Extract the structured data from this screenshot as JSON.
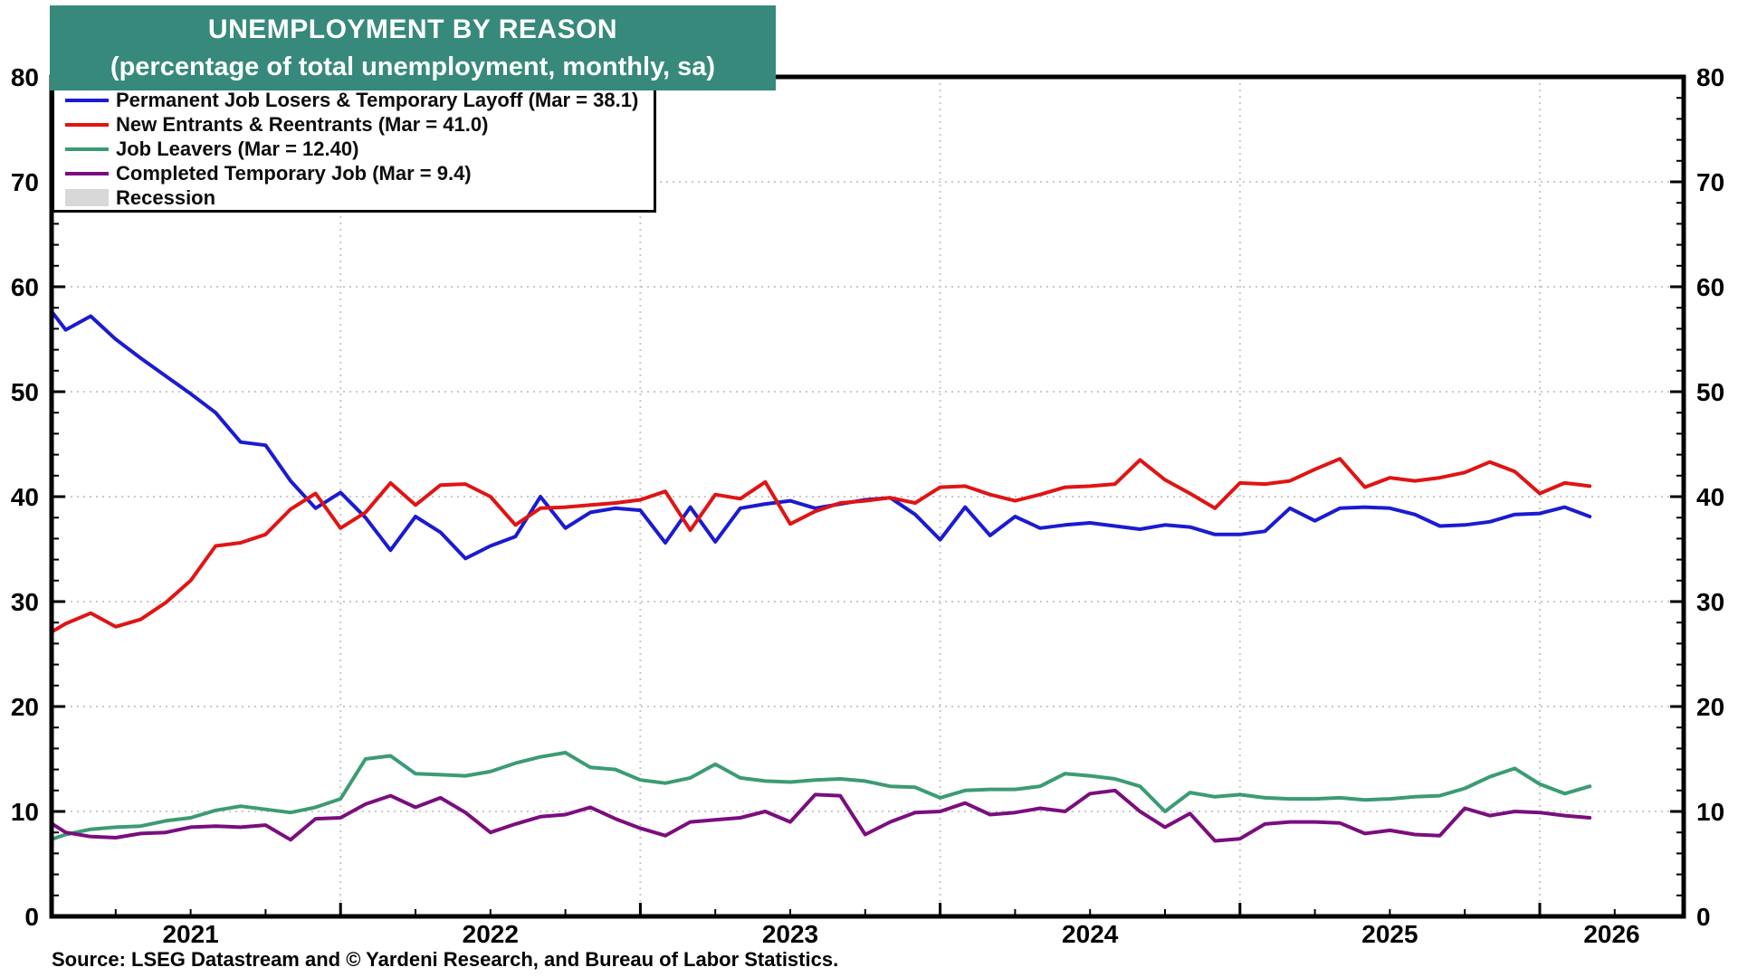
{
  "title": {
    "line1": "UNEMPLOYMENT BY REASON",
    "line2": "(percentage of total unemployment, monthly, sa)",
    "bg_color": "#36897B",
    "text_color": "#FFFFFF"
  },
  "source": "Source: LSEG Datastream and © Yardeni Research, and Bureau of Labor Statistics.",
  "legend": {
    "items": [
      {
        "label": "Permanent Job Losers & Temporary Layoff (Mar = 38.1)",
        "swatch": "line",
        "color": "#1B1BD1"
      },
      {
        "label": "New Entrants & Reentrants (Mar = 41.0)",
        "swatch": "line",
        "color": "#E01414"
      },
      {
        "label": "Job Leavers (Mar = 12.40)",
        "swatch": "line",
        "color": "#3C9B74"
      },
      {
        "label": "Completed Temporary Job (Mar = 9.4)",
        "swatch": "line",
        "color": "#7A0E7E"
      },
      {
        "label": "Recession",
        "swatch": "box",
        "color": "#D8D8D8"
      }
    ]
  },
  "chart_data": {
    "type": "line",
    "x_unit": "month",
    "x_start": "2021-01",
    "x_end": "2026-03",
    "ylim": [
      0,
      80
    ],
    "ytick_step": 10,
    "ytick_labels": [
      "0",
      "10",
      "20",
      "30",
      "40",
      "50",
      "60",
      "70",
      "80"
    ],
    "y_axis_sides": [
      "left",
      "right"
    ],
    "x_year_labels": [
      "2021",
      "2022",
      "2023",
      "2024",
      "2025",
      "2026"
    ],
    "grid": {
      "horizontal": true,
      "vertical_on_january": true,
      "style": "dotted",
      "color": "#C9C9C9"
    },
    "series": [
      {
        "name": "Permanent Job Losers & Temporary Layoff",
        "color": "#1B1BD1",
        "last_label": "Mar = 38.1",
        "values": [
          59.0,
          55.9,
          57.2,
          55.0,
          53.2,
          51.5,
          49.8,
          48.0,
          45.2,
          44.9,
          41.5,
          38.9,
          40.4,
          38.0,
          34.9,
          38.1,
          36.6,
          34.1,
          35.3,
          36.2,
          40.0,
          37.0,
          38.5,
          38.9,
          38.7,
          35.6,
          39.0,
          35.7,
          38.9,
          39.3,
          39.6,
          38.9,
          39.3,
          39.7,
          39.9,
          38.3,
          35.9,
          39.0,
          36.3,
          38.1,
          37.0,
          37.3,
          37.5,
          37.2,
          36.9,
          37.3,
          37.1,
          36.4,
          36.4,
          36.7,
          38.9,
          37.7,
          38.9,
          39.0,
          38.9,
          38.3,
          37.2,
          37.3,
          37.6,
          38.3,
          38.4,
          39.0,
          38.1
        ]
      },
      {
        "name": "New Entrants & Reentrants",
        "color": "#E01414",
        "last_label": "Mar = 41.0",
        "values": [
          26.5,
          27.9,
          28.9,
          27.6,
          28.3,
          29.9,
          32.0,
          35.3,
          35.6,
          36.4,
          38.8,
          40.3,
          37.0,
          38.5,
          41.3,
          39.2,
          41.1,
          41.2,
          40.0,
          37.3,
          38.9,
          39.0,
          39.2,
          39.4,
          39.7,
          40.5,
          36.8,
          40.2,
          39.8,
          41.4,
          37.4,
          38.6,
          39.4,
          39.6,
          39.9,
          39.4,
          40.9,
          41.0,
          40.2,
          39.6,
          40.2,
          40.9,
          41.0,
          41.2,
          43.5,
          41.6,
          40.3,
          38.9,
          41.3,
          41.2,
          41.5,
          42.6,
          43.6,
          40.9,
          41.8,
          41.5,
          41.8,
          42.3,
          43.3,
          42.4,
          40.3,
          41.3,
          41.0
        ]
      },
      {
        "name": "Job Leavers",
        "color": "#3C9B74",
        "last_label": "Mar = 12.40",
        "values": [
          7.0,
          7.8,
          8.3,
          8.5,
          8.6,
          9.1,
          9.4,
          10.1,
          10.5,
          10.2,
          9.9,
          10.4,
          11.2,
          15.0,
          15.3,
          13.6,
          13.5,
          13.4,
          13.8,
          14.6,
          15.2,
          15.6,
          14.2,
          14.0,
          13.0,
          12.7,
          13.2,
          14.5,
          13.2,
          12.9,
          12.8,
          13.0,
          13.1,
          12.9,
          12.4,
          12.3,
          11.3,
          12.0,
          12.1,
          12.1,
          12.4,
          13.6,
          13.4,
          13.1,
          12.4,
          10.0,
          11.8,
          11.4,
          11.6,
          11.3,
          11.2,
          11.2,
          11.3,
          11.1,
          11.2,
          11.4,
          11.5,
          12.2,
          13.3,
          14.1,
          12.6,
          11.7,
          12.4
        ]
      },
      {
        "name": "Completed Temporary Job",
        "color": "#7A0E7E",
        "last_label": "Mar = 9.4",
        "values": [
          9.5,
          8.0,
          7.6,
          7.5,
          7.9,
          8.0,
          8.5,
          8.6,
          8.5,
          8.7,
          7.3,
          9.3,
          9.4,
          10.7,
          11.5,
          10.4,
          11.3,
          9.9,
          8.0,
          8.8,
          9.5,
          9.7,
          10.4,
          9.3,
          8.4,
          7.7,
          9.0,
          9.2,
          9.4,
          10.0,
          9.0,
          11.6,
          11.5,
          7.8,
          9.0,
          9.9,
          10.0,
          10.8,
          9.7,
          9.9,
          10.3,
          10.0,
          11.7,
          12.0,
          10.0,
          8.5,
          9.8,
          7.2,
          7.4,
          8.8,
          9.0,
          9.0,
          8.9,
          7.9,
          8.2,
          7.8,
          7.7,
          10.3,
          9.6,
          10.0,
          9.9,
          9.6,
          9.4
        ]
      }
    ]
  }
}
